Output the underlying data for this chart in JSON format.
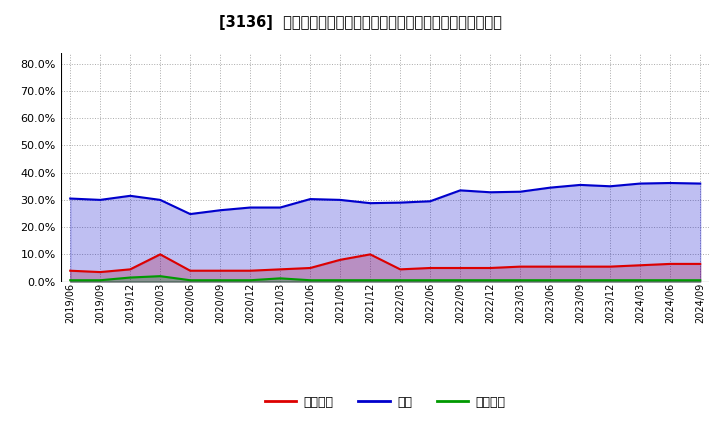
{
  "title": "[3136]  売上債権、在庫、買入債務の総資産に対する比率の推移",
  "x_labels": [
    "2019/06",
    "2019/09",
    "2019/12",
    "2020/03",
    "2020/06",
    "2020/09",
    "2020/12",
    "2021/03",
    "2021/06",
    "2021/09",
    "2021/12",
    "2022/03",
    "2022/06",
    "2022/09",
    "2022/12",
    "2023/03",
    "2023/06",
    "2023/09",
    "2023/12",
    "2024/03",
    "2024/06",
    "2024/09"
  ],
  "receivables": [
    0.04,
    0.035,
    0.045,
    0.1,
    0.04,
    0.04,
    0.04,
    0.045,
    0.05,
    0.08,
    0.1,
    0.045,
    0.05,
    0.05,
    0.05,
    0.055,
    0.055,
    0.055,
    0.055,
    0.06,
    0.065,
    0.065
  ],
  "inventory": [
    0.305,
    0.3,
    0.315,
    0.3,
    0.248,
    0.262,
    0.272,
    0.272,
    0.303,
    0.3,
    0.288,
    0.29,
    0.295,
    0.335,
    0.328,
    0.33,
    0.345,
    0.355,
    0.35,
    0.36,
    0.362,
    0.36
  ],
  "payables": [
    0.005,
    0.005,
    0.015,
    0.02,
    0.005,
    0.005,
    0.005,
    0.012,
    0.005,
    0.005,
    0.005,
    0.005,
    0.005,
    0.005,
    0.005,
    0.005,
    0.005,
    0.005,
    0.005,
    0.005,
    0.005,
    0.005
  ],
  "receivables_color": "#dd0000",
  "inventory_color": "#0000cc",
  "payables_color": "#009900",
  "receivables_fill": "#ffcccc",
  "inventory_fill": "#ccccff",
  "payables_fill": "#ccffcc",
  "legend_label_receivables": "売上債権",
  "legend_label_inventory": "在庫",
  "legend_label_payables": "買入債務",
  "ylim": [
    0.0,
    0.84
  ],
  "yticks": [
    0.0,
    0.1,
    0.2,
    0.3,
    0.4,
    0.5,
    0.6,
    0.7,
    0.8
  ],
  "background_color": "#ffffff",
  "grid_color": "#aaaaaa",
  "title_fontsize": 10.5,
  "tick_fontsize": 8,
  "legend_fontsize": 9
}
